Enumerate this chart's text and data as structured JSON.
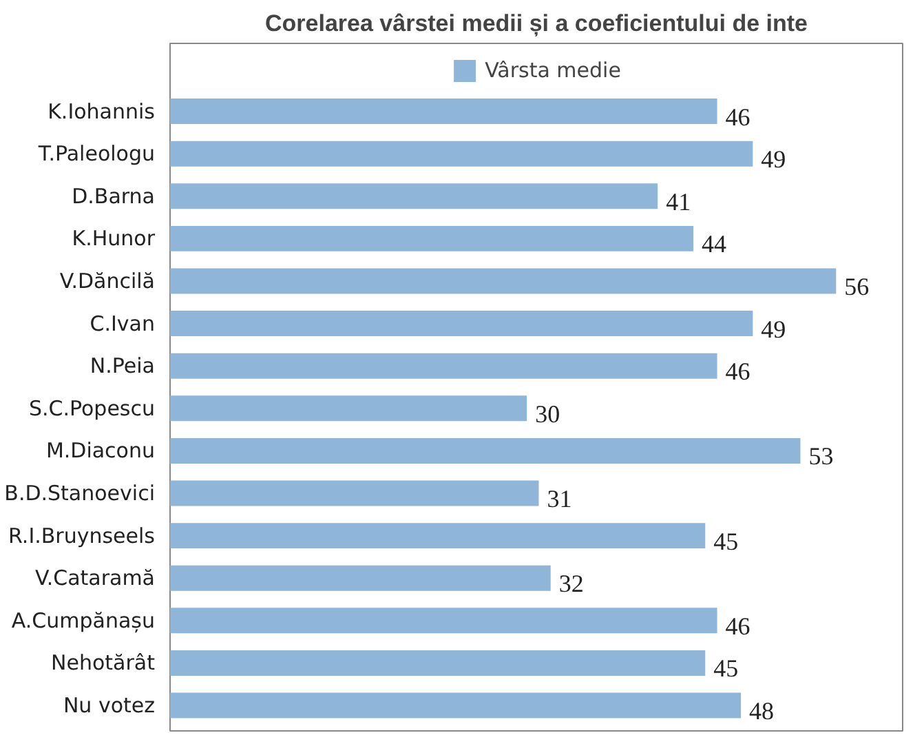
{
  "chart_data": {
    "type": "bar",
    "orientation": "horizontal",
    "title": "Corelarea vârstei medii și a coeficientului de inte",
    "categories": [
      "K.Iohannis",
      "T.Paleologu",
      "D.Barna",
      "K.Hunor",
      "V.Dăncilă",
      "C.Ivan",
      "N.Peia",
      "S.C.Popescu",
      "M.Diaconu",
      "B.D.Stanoevici",
      "R.I.Bruynseels",
      "V.Cataramă",
      "A.Cumpănașu",
      "Nehotărât",
      "Nu votez"
    ],
    "series": [
      {
        "name": "Vârsta medie",
        "color": "#8fb6d8",
        "values": [
          46,
          49,
          41,
          44,
          56,
          49,
          46,
          30,
          53,
          31,
          45,
          32,
          46,
          45,
          48
        ]
      }
    ],
    "data_labels": true,
    "legend": "top",
    "grid": false
  }
}
